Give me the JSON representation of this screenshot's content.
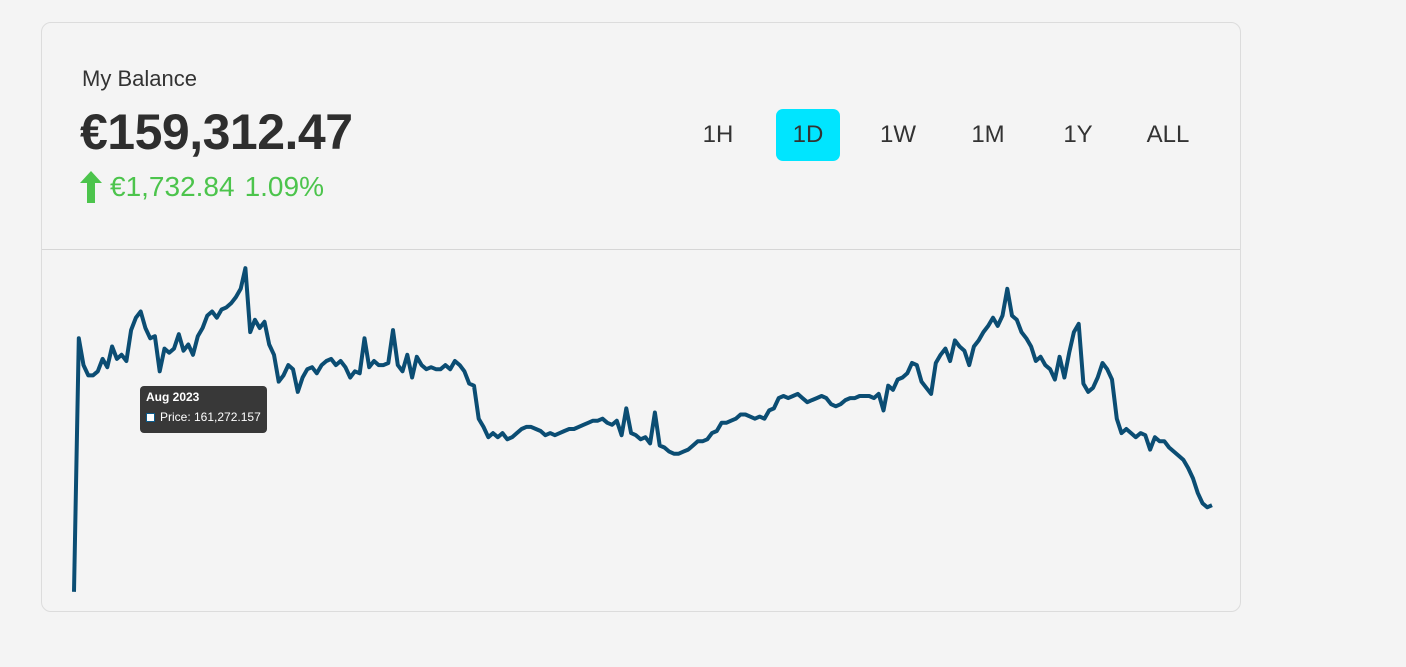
{
  "balance": {
    "label": "My Balance",
    "amount": "€159,312.47",
    "change_value": "€1,732.84",
    "change_percent": "1.09%",
    "change_direction": "up",
    "change_color": "#4cc44c"
  },
  "ranges": [
    {
      "label": "1H",
      "active": false
    },
    {
      "label": "1D",
      "active": true
    },
    {
      "label": "1W",
      "active": false
    },
    {
      "label": "1M",
      "active": false
    },
    {
      "label": "1Y",
      "active": false
    },
    {
      "label": "ALL",
      "active": false
    }
  ],
  "accent_color": "#00e5ff",
  "line_color": "#0b4d73",
  "tooltip": {
    "title": "Aug 2023",
    "label": "Price: 161,272.157"
  },
  "chart_data": {
    "type": "line",
    "title": "",
    "xlabel": "",
    "ylabel": "",
    "grid": false,
    "series": [
      {
        "values": [
          150900,
          163200,
          161900,
          161400,
          161400,
          161600,
          162200,
          161800,
          162800,
          162200,
          162400,
          162100,
          163600,
          164200,
          164500,
          163700,
          163200,
          163300,
          161600,
          162700,
          162500,
          162700,
          163400,
          162600,
          162900,
          162400,
          163300,
          163700,
          164300,
          164500,
          164200,
          164600,
          164700,
          164900,
          165200,
          165600,
          166600,
          163500,
          164100,
          163700,
          164000,
          162900,
          162400,
          161100,
          161400,
          161900,
          161700,
          160600,
          161300,
          161700,
          161800,
          161500,
          161900,
          162100,
          162200,
          161900,
          162100,
          161800,
          161300,
          161600,
          161500,
          163200,
          161800,
          162100,
          161900,
          161900,
          162000,
          163600,
          161900,
          161600,
          162400,
          161300,
          162300,
          161900,
          161700,
          161800,
          161700,
          161700,
          161900,
          161700,
          162100,
          161900,
          161600,
          161000,
          160900,
          159300,
          158900,
          158400,
          158600,
          158400,
          158600,
          158300,
          158400,
          158600,
          158800,
          158900,
          158900,
          158800,
          158700,
          158500,
          158600,
          158500,
          158600,
          158700,
          158800,
          158800,
          158900,
          159000,
          159100,
          159200,
          159200,
          159300,
          159100,
          159000,
          159200,
          158500,
          159800,
          158600,
          158500,
          158300,
          158400,
          158100,
          159600,
          158000,
          157900,
          157700,
          157600,
          157600,
          157700,
          157800,
          158000,
          158200,
          158200,
          158300,
          158600,
          158700,
          159100,
          159100,
          159200,
          159300,
          159500,
          159500,
          159400,
          159300,
          159400,
          159300,
          159700,
          159800,
          160300,
          160400,
          160300,
          160400,
          160500,
          160300,
          160100,
          160200,
          160300,
          160400,
          160300,
          160000,
          159900,
          160000,
          160200,
          160300,
          160300,
          160400,
          160400,
          160400,
          160300,
          160500,
          159700,
          160900,
          160700,
          161200,
          161300,
          161500,
          162000,
          161900,
          161100,
          160800,
          160500,
          162000,
          162400,
          162700,
          162100,
          163100,
          162800,
          162600,
          161900,
          162800,
          163100,
          163500,
          163800,
          164200,
          163800,
          164300,
          165600,
          164300,
          164100,
          163500,
          163200,
          162800,
          162100,
          162300,
          161900,
          161700,
          161200,
          162300,
          161300,
          162500,
          163500,
          163900,
          161000,
          160600,
          160800,
          161300,
          162000,
          161700,
          161200,
          159300,
          158600,
          158800,
          158600,
          158400,
          158600,
          158500,
          157800,
          158400,
          158200,
          158200,
          157900,
          157700,
          157500,
          157300,
          156900,
          156400,
          155700,
          155200,
          155000,
          155100
        ]
      }
    ],
    "y_range": [
      150500,
      167000
    ]
  }
}
